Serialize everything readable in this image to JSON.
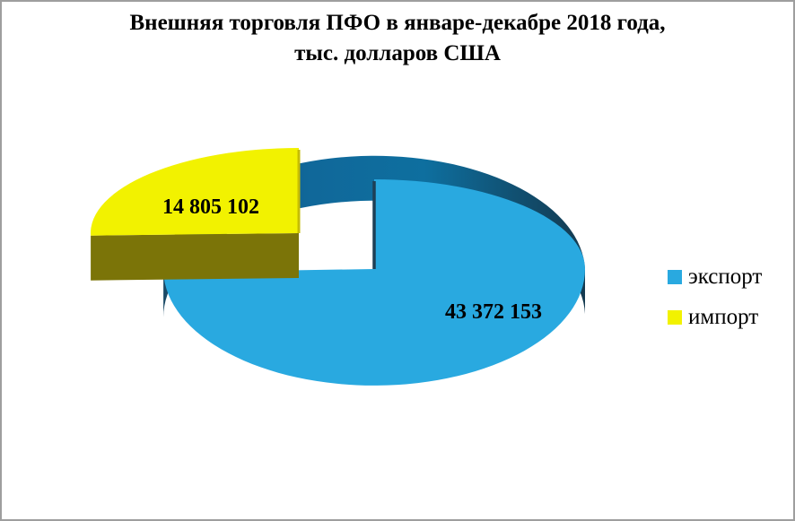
{
  "title": {
    "line1": "Внешняя торговля ПФО в январе-декабре 2018 года,",
    "line2": "тыс. долларов США"
  },
  "chart_data": {
    "type": "pie",
    "style": "3d-exploded",
    "title": "Внешняя торговля ПФО в январе-декабре 2018 года, тыс. долларов США",
    "unit": "тыс. долларов США",
    "legend_position": "right",
    "series": [
      {
        "name": "экспорт",
        "value": 43372153,
        "formatted_value": "43 372 153",
        "percent": 74.6,
        "color": "#29A9E0",
        "side_color_dark": "#1b4a66",
        "side_color_light": "#0e6f9f",
        "exploded": false
      },
      {
        "name": "импорт",
        "value": 14805102,
        "formatted_value": "14 805 102",
        "percent": 25.4,
        "color": "#F2F200",
        "side_color_dark": "#7b7408",
        "side_color_light": "#7b7408",
        "exploded": true
      }
    ],
    "total": 58177255
  },
  "frame": {
    "border_color": "#9e9e9e",
    "background": "#ffffff"
  }
}
